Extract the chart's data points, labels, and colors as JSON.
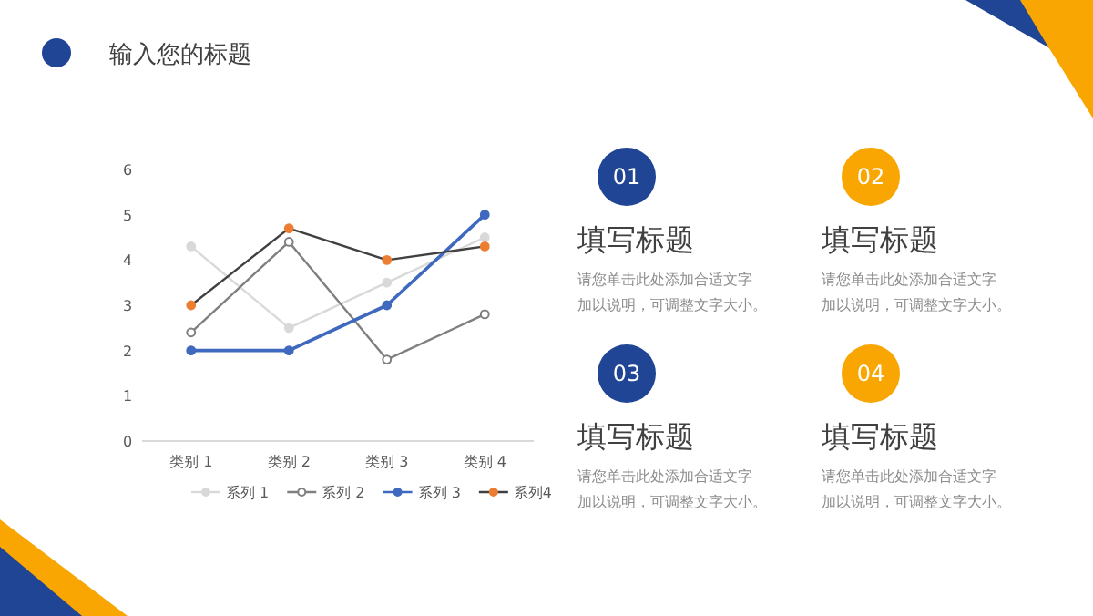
{
  "chart_data": [
    {
      "type": "line",
      "title": "输入您的标题",
      "categories": [
        "类别 1",
        "类别 2",
        "类别 3",
        "类别 4"
      ],
      "series": [
        {
          "name": "系列 1",
          "color": "#d9d9d9",
          "values": [
            4.3,
            2.5,
            3.5,
            4.5
          ]
        },
        {
          "name": "系列 2",
          "color": "#7f7f7f",
          "values": [
            2.4,
            4.4,
            1.8,
            2.8
          ]
        },
        {
          "name": "系列 3",
          "color": "#3f69be",
          "values": [
            2,
            2,
            3,
            5
          ]
        },
        {
          "name": "系列4",
          "color": "#404040",
          "colors": [
            "#ed7d31",
            "#ed7d31",
            "#ed7d31",
            "#ed7d31"
          ],
          "values": [
            3,
            4.7,
            4,
            4.3
          ]
        }
      ],
      "ylim": [
        0,
        6
      ],
      "yticks": [
        0,
        1,
        2,
        3,
        4,
        5,
        6
      ],
      "legend": "bottom",
      "marker": "circle"
    },
    {
      "type": "other",
      "annotations": [
        "01",
        "填写标题",
        "请您单击此处添加合适文字加以说明，可调整文字大小。",
        "02",
        "填写标题",
        "请您单击此处添加合适文字加以说明，可调整文字大小。",
        "03",
        "填写标题",
        "请您单击此处添加合适文字加以说明，可调整文字大小。",
        "04",
        "填写标题",
        "请您单击此处添加合适文字加以说明，可调整文字大小。"
      ]
    }
  ]
}
